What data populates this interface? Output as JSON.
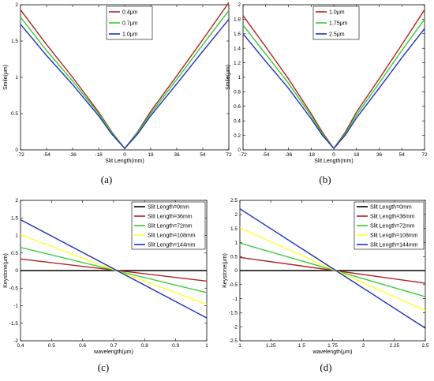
{
  "chart_data": [
    {
      "id": "a",
      "type": "line",
      "caption": "(a)",
      "xlabel": "Slit Length(mm)",
      "ylabel": "Smile(μm)",
      "xlim": [
        -72,
        72
      ],
      "ylim": [
        0,
        2
      ],
      "xticks": [
        -72,
        -54,
        -36,
        -18,
        0,
        18,
        36,
        54,
        72
      ],
      "yticks": [
        0,
        0.5,
        1,
        1.5,
        2
      ],
      "xtick_labels": [
        "-72",
        "-54",
        "-36",
        "-18",
        "0",
        "18",
        "36",
        "54",
        "72"
      ],
      "ytick_labels": [
        "0",
        "0.5",
        "1",
        "1.5",
        "2"
      ],
      "legend_position": "top-center",
      "series": [
        {
          "name": "0.4μm",
          "color": "#b22222",
          "x": [
            -72,
            -54,
            -36,
            -18,
            -9,
            0,
            9,
            18,
            36,
            54,
            72
          ],
          "y": [
            1.93,
            1.45,
            1.0,
            0.52,
            0.25,
            0.02,
            0.25,
            0.53,
            1.02,
            1.52,
            2.03
          ]
        },
        {
          "name": "0.7μm",
          "color": "#33cc33",
          "x": [
            -72,
            -54,
            -36,
            -18,
            -9,
            0,
            9,
            18,
            36,
            54,
            72
          ],
          "y": [
            1.83,
            1.37,
            0.95,
            0.5,
            0.24,
            0.02,
            0.24,
            0.5,
            0.97,
            1.45,
            1.92
          ]
        },
        {
          "name": "1.0μm",
          "color": "#1f2fbf",
          "x": [
            -72,
            -54,
            -36,
            -18,
            -9,
            0,
            9,
            18,
            36,
            54,
            72
          ],
          "y": [
            1.73,
            1.3,
            0.9,
            0.47,
            0.22,
            0.02,
            0.22,
            0.47,
            0.91,
            1.36,
            1.8
          ]
        }
      ]
    },
    {
      "id": "b",
      "type": "line",
      "caption": "(b)",
      "xlabel": "Slit Length(mm)",
      "ylabel": "Smile(μm)",
      "xlim": [
        -72,
        72
      ],
      "ylim": [
        0,
        2
      ],
      "xticks": [
        -72,
        -54,
        -36,
        -18,
        0,
        18,
        36,
        54,
        72
      ],
      "yticks": [
        0,
        0.2,
        0.4,
        0.6,
        0.8,
        1,
        1.2,
        1.4,
        1.6,
        1.8,
        2
      ],
      "xtick_labels": [
        "-72",
        "-54",
        "-36",
        "-18",
        "0",
        "18",
        "36",
        "54",
        "72"
      ],
      "ytick_labels": [
        "0",
        "0.2",
        "0.4",
        "0.6",
        "0.8",
        "1",
        "1.2",
        "1.4",
        "1.6",
        "1.8",
        "2"
      ],
      "legend_position": "top-center",
      "series": [
        {
          "name": "1.0μm",
          "color": "#b22222",
          "x": [
            -72,
            -54,
            -36,
            -18,
            -9,
            0,
            9,
            18,
            36,
            54,
            72
          ],
          "y": [
            1.85,
            1.42,
            0.98,
            0.5,
            0.24,
            0.02,
            0.24,
            0.52,
            0.98,
            1.45,
            1.93
          ]
        },
        {
          "name": "1.75μm",
          "color": "#33cc33",
          "x": [
            -72,
            -54,
            -36,
            -18,
            -9,
            0,
            9,
            18,
            36,
            54,
            72
          ],
          "y": [
            1.72,
            1.32,
            0.92,
            0.47,
            0.22,
            0.02,
            0.22,
            0.48,
            0.92,
            1.37,
            1.8
          ]
        },
        {
          "name": "2.5μm",
          "color": "#1f2fbf",
          "x": [
            -72,
            -54,
            -36,
            -18,
            -9,
            0,
            9,
            18,
            36,
            54,
            72
          ],
          "y": [
            1.6,
            1.22,
            0.85,
            0.43,
            0.2,
            0.02,
            0.2,
            0.44,
            0.85,
            1.27,
            1.67
          ]
        }
      ]
    },
    {
      "id": "c",
      "type": "line",
      "caption": "(c)",
      "xlabel": "wavelength(μm)",
      "ylabel": "Keystone(μm)",
      "xlim": [
        0.4,
        1
      ],
      "ylim": [
        -2,
        2
      ],
      "xticks": [
        0.4,
        0.5,
        0.6,
        0.7,
        0.8,
        0.9,
        1
      ],
      "yticks": [
        -2,
        -1.5,
        -1,
        -0.5,
        0,
        0.5,
        1,
        1.5,
        2
      ],
      "xtick_labels": [
        "0.4",
        "0.5",
        "0.6",
        "0.7",
        "0.8",
        "0.9",
        "1"
      ],
      "ytick_labels": [
        "-2",
        "-1.5",
        "-1",
        "-0.5",
        "0",
        "0.5",
        "1",
        "1.5",
        "2"
      ],
      "legend_position": "top-right",
      "series": [
        {
          "name": "Slit Length=0mm",
          "color": "#000000",
          "x": [
            0.4,
            1
          ],
          "y": [
            0,
            0
          ]
        },
        {
          "name": "Slit Length=36mm",
          "color": "#b22222",
          "x": [
            0.4,
            1
          ],
          "y": [
            0.33,
            -0.3
          ]
        },
        {
          "name": "Slit Length=72mm",
          "color": "#33cc33",
          "x": [
            0.4,
            1
          ],
          "y": [
            0.66,
            -0.63
          ]
        },
        {
          "name": "Slit Length=108mm",
          "color": "#ffff33",
          "x": [
            0.4,
            1
          ],
          "y": [
            1.02,
            -0.96
          ]
        },
        {
          "name": "Slit Length=144mm",
          "color": "#1f2fbf",
          "x": [
            0.4,
            1
          ],
          "y": [
            1.45,
            -1.35
          ]
        }
      ]
    },
    {
      "id": "d",
      "type": "line",
      "caption": "(d)",
      "xlabel": "wavelength(μm)",
      "ylabel": "Keystone(μm)",
      "xlim": [
        1,
        2.5
      ],
      "ylim": [
        -2.5,
        2.5
      ],
      "xticks": [
        1,
        1.25,
        1.5,
        1.75,
        2,
        2.25,
        2.5
      ],
      "yticks": [
        -2.5,
        -2,
        -1.5,
        -1,
        -0.5,
        0,
        0.5,
        1,
        1.5,
        2,
        2.5
      ],
      "xtick_labels": [
        "1",
        "1.25",
        "1.5",
        "1.75",
        "2",
        "2.25",
        "2.5"
      ],
      "ytick_labels": [
        "-2.5",
        "-2",
        "-1.5",
        "-1",
        "-0.5",
        "0",
        "0.5",
        "1",
        "1.5",
        "2",
        "2.5"
      ],
      "legend_position": "top-right",
      "series": [
        {
          "name": "Slit Length=0mm",
          "color": "#000000",
          "x": [
            1,
            2.5
          ],
          "y": [
            0,
            0
          ]
        },
        {
          "name": "Slit Length=36mm",
          "color": "#b22222",
          "x": [
            1,
            2.5
          ],
          "y": [
            0.47,
            -0.45
          ]
        },
        {
          "name": "Slit Length=72mm",
          "color": "#33cc33",
          "x": [
            1,
            2.5
          ],
          "y": [
            0.98,
            -0.93
          ]
        },
        {
          "name": "Slit Length=108mm",
          "color": "#ffff33",
          "x": [
            1,
            2.5
          ],
          "y": [
            1.52,
            -1.42
          ]
        },
        {
          "name": "Slit Length=144mm",
          "color": "#1f2fbf",
          "x": [
            1,
            2.5
          ],
          "y": [
            2.2,
            -2.05
          ]
        }
      ]
    }
  ]
}
